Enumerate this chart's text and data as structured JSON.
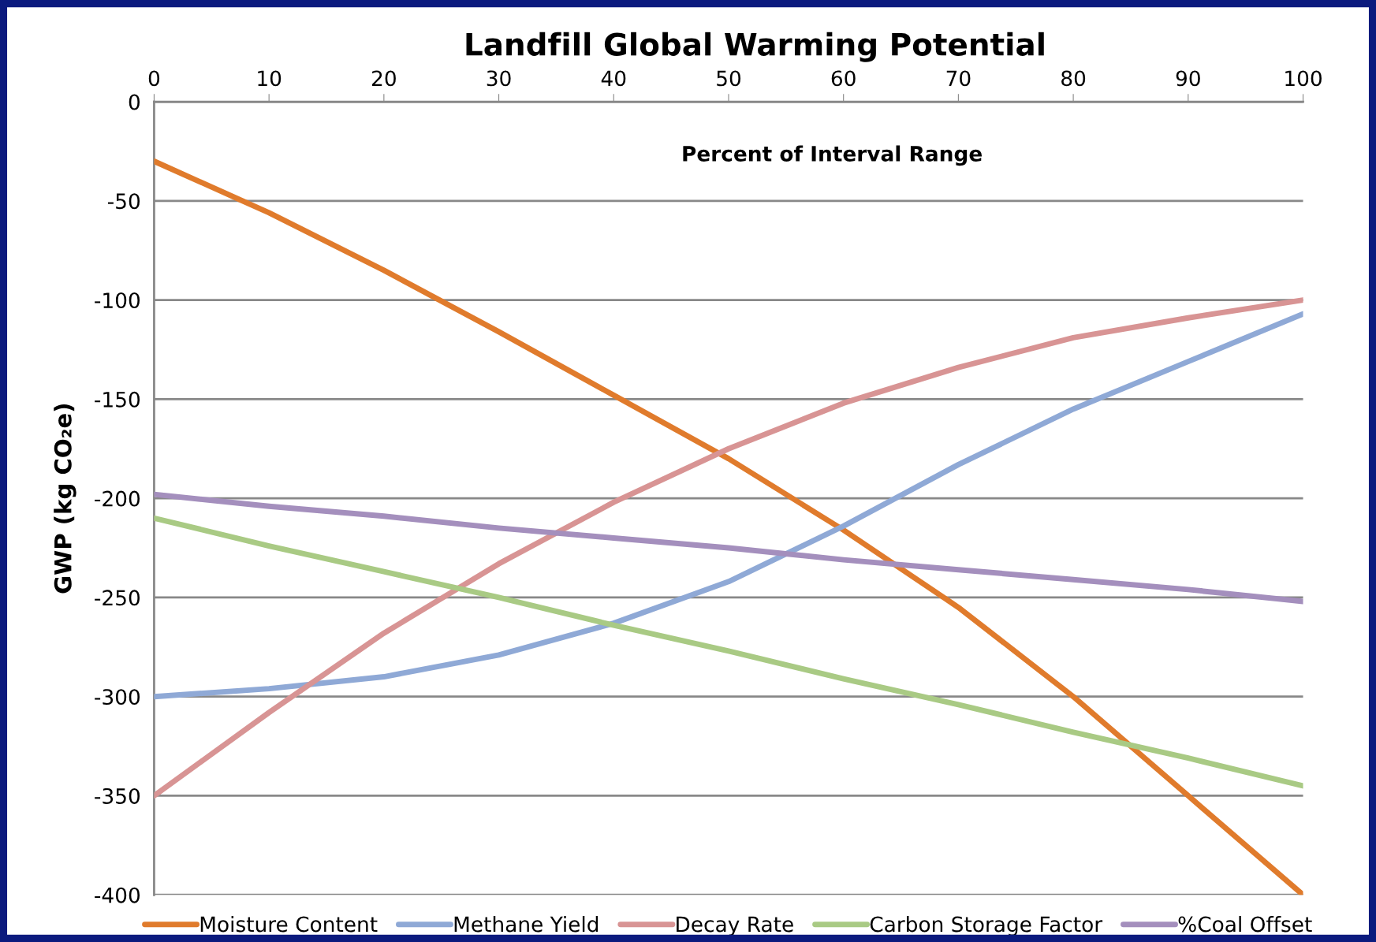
{
  "chart_data": {
    "type": "line",
    "title": "Landfill Global Warming Potential",
    "xlabel": "Percent of Interval Range",
    "ylabel": "GWP (kg CO₂e)",
    "x": [
      0,
      10,
      20,
      30,
      40,
      50,
      60,
      70,
      80,
      90,
      100
    ],
    "series": [
      {
        "name": "Moisture Content",
        "color": "#e07b2c",
        "values": [
          -30,
          -56,
          -85,
          -116,
          -148,
          -180,
          -216,
          -255,
          -300,
          -350,
          -400
        ]
      },
      {
        "name": "Methane Yield",
        "color": "#8fa9d6",
        "values": [
          -300,
          -296,
          -290,
          -279,
          -263,
          -242,
          -214,
          -183,
          -155,
          -131,
          -107
        ]
      },
      {
        "name": "Decay Rate",
        "color": "#d89494",
        "values": [
          -350,
          -308,
          -268,
          -233,
          -202,
          -175,
          -152,
          -134,
          -119,
          -109,
          -100
        ]
      },
      {
        "name": "Carbon Storage Factor",
        "color": "#a9ca84",
        "values": [
          -210,
          -224,
          -237,
          -250,
          -264,
          -277,
          -291,
          -304,
          -318,
          -331,
          -345
        ]
      },
      {
        "name": "%Coal Offset",
        "color": "#a48fbd",
        "values": [
          -198,
          -204,
          -209,
          -215,
          -220,
          -225,
          -231,
          -236,
          -241,
          -246,
          -252
        ]
      }
    ],
    "xlim": [
      0,
      100
    ],
    "xticks": [
      0,
      10,
      20,
      30,
      40,
      50,
      60,
      70,
      80,
      90,
      100
    ],
    "ylim": [
      -400,
      0
    ],
    "yticks": [
      -400,
      -350,
      -300,
      -250,
      -200,
      -150,
      -100,
      -50,
      0
    ],
    "grid": "y",
    "legend": "bottom",
    "marker": "none",
    "line_style": "solid"
  }
}
